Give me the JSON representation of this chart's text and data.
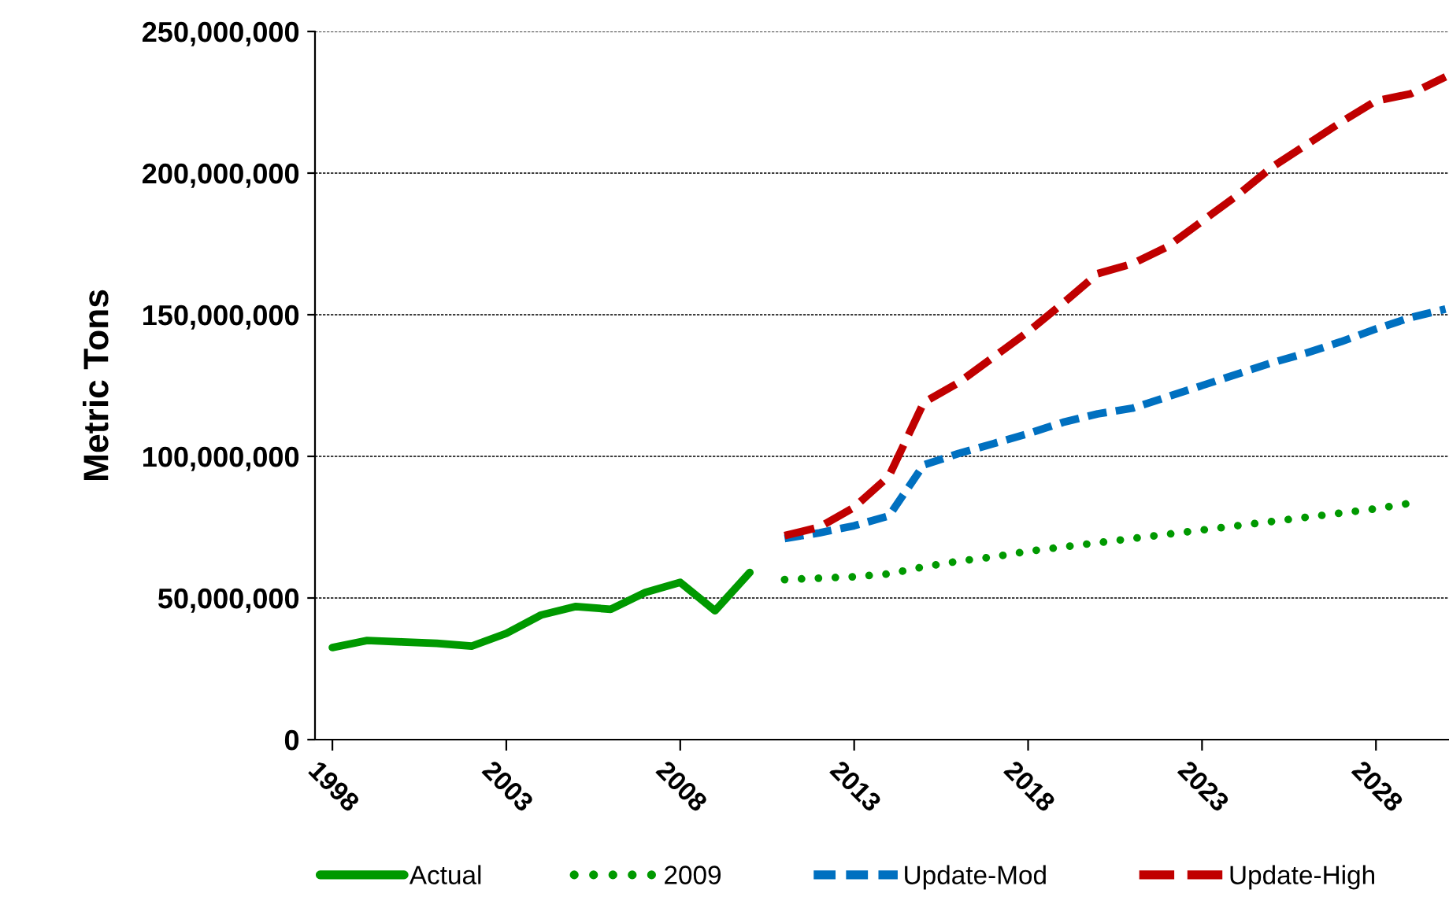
{
  "chart_data": {
    "type": "line",
    "ylabel": "Metric Tons",
    "xlim": [
      1997.5,
      2030.1
    ],
    "ylim": [
      0,
      250000000
    ],
    "yticks": [
      {
        "value": 0,
        "label": "0"
      },
      {
        "value": 50000000,
        "label": "50,000,000"
      },
      {
        "value": 100000000,
        "label": "100,000,000"
      },
      {
        "value": 150000000,
        "label": "150,000,000"
      },
      {
        "value": 200000000,
        "label": "200,000,000"
      },
      {
        "value": 250000000,
        "label": "250,000,000"
      }
    ],
    "xticks": [
      1998,
      2003,
      2008,
      2013,
      2018,
      2023,
      2028
    ],
    "grid": "y",
    "legend": "bottom",
    "series": [
      {
        "name": "Actual",
        "color": "#009900",
        "line_style": "solid",
        "x": [
          1998,
          1999,
          2000,
          2001,
          2002,
          2003,
          2004,
          2005,
          2006,
          2007,
          2008,
          2009,
          2010
        ],
        "values": [
          32500000,
          35000000,
          34500000,
          34000000,
          33000000,
          37500000,
          44000000,
          47000000,
          46000000,
          52000000,
          55500000,
          45500000,
          59000000
        ]
      },
      {
        "name": "2009",
        "color": "#009900",
        "line_style": "dotted",
        "x": [
          2011,
          2012,
          2013,
          2014,
          2015,
          2016,
          2017,
          2018,
          2019,
          2020,
          2021,
          2022,
          2023,
          2024,
          2025,
          2026,
          2027,
          2028,
          2029
        ],
        "values": [
          56500000,
          57000000,
          57500000,
          58500000,
          61000000,
          63000000,
          64500000,
          66500000,
          68000000,
          69500000,
          71000000,
          72500000,
          74000000,
          75500000,
          77000000,
          78500000,
          80000000,
          81500000,
          83500000
        ]
      },
      {
        "name": "Update-Mod",
        "color": "#0070c0",
        "line_style": "dashed",
        "x": [
          2011,
          2012,
          2013,
          2014,
          2015,
          2016,
          2017,
          2018,
          2019,
          2020,
          2021,
          2022,
          2023,
          2024,
          2025,
          2026,
          2027,
          2028,
          2029,
          2030
        ],
        "values": [
          71000000,
          73000000,
          75500000,
          79000000,
          97000000,
          101000000,
          104500000,
          108000000,
          112000000,
          115000000,
          117000000,
          121000000,
          125000000,
          129000000,
          133000000,
          136500000,
          140500000,
          145000000,
          149000000,
          152000000
        ]
      },
      {
        "name": "Update-High",
        "color": "#c00000",
        "line_style": "longdash",
        "x": [
          2011,
          2012,
          2013,
          2014,
          2015,
          2016,
          2017,
          2018,
          2019,
          2020,
          2021,
          2022,
          2023,
          2024,
          2025,
          2026,
          2027,
          2028,
          2029,
          2030
        ],
        "values": [
          72000000,
          75000000,
          82000000,
          93000000,
          119000000,
          126000000,
          135000000,
          144000000,
          154000000,
          164500000,
          168000000,
          174000000,
          183000000,
          192000000,
          202000000,
          210000000,
          218000000,
          225500000,
          228000000,
          234000000
        ]
      }
    ]
  }
}
